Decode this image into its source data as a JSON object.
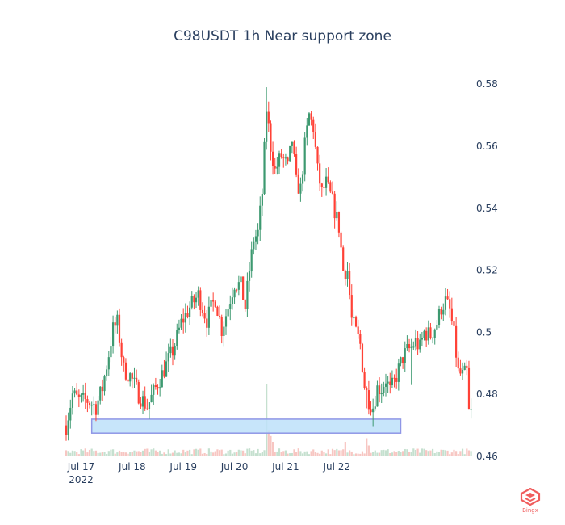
{
  "colors": {
    "up": "#3d9970",
    "down": "#ff4136",
    "vol_up": "#c5e0cf",
    "vol_down": "#f7c6c2",
    "zone_fill": "#bde0f9",
    "zone_stroke": "#8f96e6",
    "text": "#2a3f5f",
    "logo": "#f05d5d"
  },
  "watermark": {
    "text": "Bingx",
    "icon": "bingx-logo-icon"
  },
  "chart_data": {
    "type": "candlestick",
    "title": "C98USDT   1h Near support zone",
    "x_ticks": [
      {
        "date": "2022-07-17 00:00",
        "label": "Jul 17",
        "sublabel": "2022"
      },
      {
        "date": "2022-07-18 00:00",
        "label": "Jul 18"
      },
      {
        "date": "2022-07-19 00:00",
        "label": "Jul 19"
      },
      {
        "date": "2022-07-20 00:00",
        "label": "Jul 20"
      },
      {
        "date": "2022-07-21 00:00",
        "label": "Jul 21"
      },
      {
        "date": "2022-07-22 00:00",
        "label": "Jul 22"
      }
    ],
    "y_ticks": [
      "0.46",
      "0.48",
      "0.5",
      "0.52",
      "0.54",
      "0.56",
      "0.58"
    ],
    "ylim": [
      0.46,
      0.585
    ],
    "y_axis_side": "right",
    "support_zone": {
      "start": "2022-07-17 05:00",
      "end": "2022-07-23 06:00",
      "low": 0.4675,
      "high": 0.472
    },
    "volume_overlay": true,
    "grid": false,
    "start_time": "2022-07-16 17:00",
    "interval_hours": 1,
    "close_points": [
      [
        0,
        0.47
      ],
      [
        3,
        0.48
      ],
      [
        6,
        0.478
      ],
      [
        10,
        0.478
      ],
      [
        14,
        0.476
      ],
      [
        17,
        0.482
      ],
      [
        20,
        0.493
      ],
      [
        22,
        0.501
      ],
      [
        24,
        0.503
      ],
      [
        27,
        0.488
      ],
      [
        30,
        0.486
      ],
      [
        34,
        0.48
      ],
      [
        38,
        0.476
      ],
      [
        42,
        0.482
      ],
      [
        46,
        0.488
      ],
      [
        50,
        0.494
      ],
      [
        54,
        0.503
      ],
      [
        58,
        0.508
      ],
      [
        62,
        0.512
      ],
      [
        66,
        0.504
      ],
      [
        70,
        0.511
      ],
      [
        73,
        0.501
      ],
      [
        76,
        0.508
      ],
      [
        79,
        0.516
      ],
      [
        82,
        0.515
      ],
      [
        84,
        0.508
      ],
      [
        86,
        0.52
      ],
      [
        88,
        0.53
      ],
      [
        90,
        0.532
      ],
      [
        92,
        0.545
      ],
      [
        94,
        0.572
      ],
      [
        96,
        0.56
      ],
      [
        98,
        0.552
      ],
      [
        101,
        0.557
      ],
      [
        104,
        0.553
      ],
      [
        106,
        0.562
      ],
      [
        108,
        0.548
      ],
      [
        110,
        0.546
      ],
      [
        112,
        0.56
      ],
      [
        114,
        0.57
      ],
      [
        116,
        0.566
      ],
      [
        118,
        0.552
      ],
      [
        120,
        0.545
      ],
      [
        122,
        0.548
      ],
      [
        125,
        0.542
      ],
      [
        128,
        0.534
      ],
      [
        130,
        0.52
      ],
      [
        132,
        0.52
      ],
      [
        134,
        0.504
      ],
      [
        136,
        0.5
      ],
      [
        138,
        0.496
      ],
      [
        140,
        0.483
      ],
      [
        142,
        0.478
      ],
      [
        144,
        0.476
      ],
      [
        146,
        0.482
      ],
      [
        148,
        0.482
      ],
      [
        150,
        0.485
      ],
      [
        152,
        0.481
      ],
      [
        154,
        0.484
      ],
      [
        156,
        0.488
      ],
      [
        158,
        0.492
      ],
      [
        160,
        0.494
      ],
      [
        162,
        0.495
      ],
      [
        164,
        0.497
      ],
      [
        166,
        0.495
      ],
      [
        168,
        0.5
      ],
      [
        171,
        0.499
      ],
      [
        174,
        0.503
      ],
      [
        176,
        0.508
      ],
      [
        178,
        0.51
      ],
      [
        180,
        0.507
      ],
      [
        182,
        0.499
      ],
      [
        184,
        0.487
      ],
      [
        186,
        0.486
      ],
      [
        188,
        0.487
      ],
      [
        189,
        0.474
      ],
      [
        190,
        0.474
      ]
    ],
    "volume_spikes": [
      {
        "index": 94,
        "relative": 1.0
      },
      {
        "index": 95,
        "relative": 0.35
      },
      {
        "index": 96,
        "relative": 0.28
      },
      {
        "index": 97,
        "relative": 0.2
      },
      {
        "index": 131,
        "relative": 0.2
      },
      {
        "index": 141,
        "relative": 0.25
      },
      {
        "index": 142,
        "relative": 0.15
      }
    ]
  }
}
